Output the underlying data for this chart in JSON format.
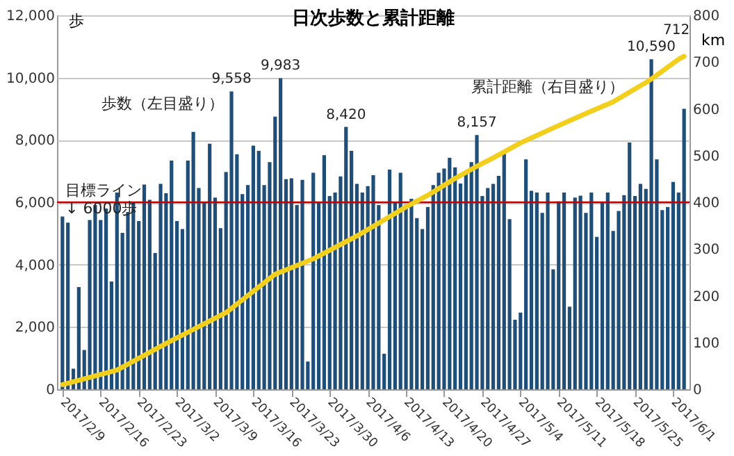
{
  "chart_data": {
    "type": "bar",
    "title": "日次歩数と累計距離",
    "ylabel": "歩",
    "y2label": "km",
    "x": [
      "2017-02-09",
      "2017-02-10",
      "2017-02-11",
      "2017-02-12",
      "2017-02-13",
      "2017-02-14",
      "2017-02-15",
      "2017-02-16",
      "2017-02-17",
      "2017-02-18",
      "2017-02-19",
      "2017-02-20",
      "2017-02-21",
      "2017-02-22",
      "2017-02-23",
      "2017-02-24",
      "2017-02-25",
      "2017-02-26",
      "2017-02-27",
      "2017-02-28",
      "2017-03-01",
      "2017-03-02",
      "2017-03-03",
      "2017-03-04",
      "2017-03-05",
      "2017-03-06",
      "2017-03-07",
      "2017-03-08",
      "2017-03-09",
      "2017-03-10",
      "2017-03-11",
      "2017-03-12",
      "2017-03-13",
      "2017-03-14",
      "2017-03-15",
      "2017-03-16",
      "2017-03-17",
      "2017-03-18",
      "2017-03-19",
      "2017-03-20",
      "2017-03-21",
      "2017-03-22",
      "2017-03-23",
      "2017-03-24",
      "2017-03-25",
      "2017-03-26",
      "2017-03-27",
      "2017-03-28",
      "2017-03-29",
      "2017-03-30",
      "2017-03-31",
      "2017-04-01",
      "2017-04-02",
      "2017-04-03",
      "2017-04-04",
      "2017-04-05",
      "2017-04-06",
      "2017-04-07",
      "2017-04-08",
      "2017-04-09",
      "2017-04-10",
      "2017-04-11",
      "2017-04-12",
      "2017-04-13",
      "2017-04-14",
      "2017-04-15",
      "2017-04-16",
      "2017-04-17",
      "2017-04-18",
      "2017-04-19",
      "2017-04-20",
      "2017-04-21",
      "2017-04-22",
      "2017-04-23",
      "2017-04-24",
      "2017-04-25",
      "2017-04-26",
      "2017-04-27",
      "2017-04-28",
      "2017-04-29",
      "2017-04-30",
      "2017-05-01",
      "2017-05-02",
      "2017-05-03",
      "2017-05-04",
      "2017-05-05",
      "2017-05-06",
      "2017-05-07",
      "2017-05-08",
      "2017-05-09",
      "2017-05-10",
      "2017-05-11",
      "2017-05-12",
      "2017-05-13",
      "2017-05-14",
      "2017-05-15",
      "2017-05-16",
      "2017-05-17",
      "2017-05-18",
      "2017-05-19",
      "2017-05-20",
      "2017-05-21",
      "2017-05-22",
      "2017-05-23",
      "2017-05-24",
      "2017-05-25",
      "2017-05-26",
      "2017-05-27",
      "2017-05-28",
      "2017-05-29",
      "2017-05-30",
      "2017-05-31",
      "2017-06-01",
      "2017-06-02",
      "2017-06-03"
    ],
    "xlim": [
      "2017-02-08",
      "2017-06-04"
    ],
    "xticks": [
      {
        "value": "2017-02-09",
        "label": "2017/2/9"
      },
      {
        "value": "2017-02-16",
        "label": "2017/2/16"
      },
      {
        "value": "2017-02-23",
        "label": "2017/2/23"
      },
      {
        "value": "2017-03-02",
        "label": "2017/3/2"
      },
      {
        "value": "2017-03-09",
        "label": "2017/3/9"
      },
      {
        "value": "2017-03-16",
        "label": "2017/3/16"
      },
      {
        "value": "2017-03-23",
        "label": "2017/3/23"
      },
      {
        "value": "2017-03-30",
        "label": "2017/3/30"
      },
      {
        "value": "2017-04-06",
        "label": "2017/4/6"
      },
      {
        "value": "2017-04-13",
        "label": "2017/4/13"
      },
      {
        "value": "2017-04-20",
        "label": "2017/4/20"
      },
      {
        "value": "2017-04-27",
        "label": "2017/4/27"
      },
      {
        "value": "2017-05-04",
        "label": "2017/5/4"
      },
      {
        "value": "2017-05-11",
        "label": "2017/5/11"
      },
      {
        "value": "2017-05-18",
        "label": "2017/5/18"
      },
      {
        "value": "2017-05-25",
        "label": "2017/5/25"
      },
      {
        "value": "2017-06-01",
        "label": "2017/6/1"
      }
    ],
    "ylim": [
      0,
      12000
    ],
    "yticks": [
      0,
      {
        "value": 2000,
        "label": "2,000"
      },
      {
        "value": 4000,
        "label": "4,000"
      },
      {
        "value": 6000,
        "label": "6,000"
      },
      {
        "value": 8000,
        "label": "8,000"
      },
      {
        "value": 10000,
        "label": "10,000"
      },
      {
        "value": 12000,
        "label": "12,000"
      }
    ],
    "y2lim": [
      0,
      800
    ],
    "y2ticks": [
      0,
      100,
      200,
      300,
      400,
      500,
      600,
      700,
      800
    ],
    "grid": "y",
    "ref_lines": [
      {
        "axis": "y",
        "value": 6000,
        "label": "目標ライン\n↓ 6000歩",
        "color": "#c00000"
      }
    ],
    "series": [
      {
        "name": "歩数（左目盛り）",
        "color": "#1f4e79",
        "values": [
          5540,
          5350,
          660,
          3280,
          1260,
          5430,
          5910,
          5430,
          5800,
          3460,
          6310,
          5020,
          5690,
          6000,
          5400,
          6570,
          6080,
          4370,
          6590,
          6290,
          7340,
          5400,
          5140,
          7340,
          8260,
          6460,
          6000,
          7880,
          6150,
          5170,
          6970,
          9558,
          7540,
          6260,
          6550,
          7820,
          7650,
          6550,
          7290,
          8750,
          9983,
          6740,
          6770,
          5910,
          6720,
          890,
          6950,
          6000,
          7510,
          6200,
          6310,
          6830,
          8420,
          7650,
          6590,
          6310,
          6520,
          6870,
          5910,
          1140,
          7050,
          5990,
          6950,
          5920,
          6110,
          5490,
          5140,
          5850,
          6550,
          6950,
          7080,
          7430,
          7120,
          6600,
          6950,
          7290,
          8157,
          6200,
          6460,
          6590,
          6850,
          7570,
          5460,
          2230,
          2460,
          7380,
          6370,
          6310,
          5660,
          6310,
          3850,
          6030,
          6310,
          2650,
          6150,
          6210,
          5660,
          6310,
          4890,
          5990,
          6310,
          5080,
          5720,
          6230,
          7920,
          6200,
          6590,
          6430,
          10590,
          7380,
          5750,
          5850,
          6650,
          6310,
          9000
        ],
        "value_labels": [
          null,
          null,
          null,
          null,
          null,
          null,
          null,
          null,
          null,
          null,
          null,
          null,
          null,
          null,
          null,
          null,
          null,
          null,
          null,
          null,
          null,
          null,
          null,
          null,
          null,
          null,
          null,
          null,
          null,
          null,
          null,
          "9,558",
          null,
          null,
          null,
          null,
          null,
          null,
          null,
          null,
          "9,983",
          null,
          null,
          null,
          null,
          null,
          null,
          null,
          null,
          null,
          null,
          null,
          "8,420",
          null,
          null,
          null,
          null,
          null,
          null,
          null,
          null,
          null,
          null,
          null,
          null,
          null,
          null,
          null,
          null,
          null,
          null,
          null,
          null,
          null,
          null,
          null,
          "8,157",
          null,
          null,
          null,
          null,
          null,
          null,
          null,
          null,
          null,
          null,
          null,
          null,
          null,
          null,
          null,
          null,
          null,
          null,
          null,
          null,
          null,
          null,
          null,
          null,
          null,
          null,
          null,
          null,
          null,
          null,
          null,
          "10,590",
          null,
          null,
          null,
          null,
          null,
          null
        ]
      },
      {
        "name": "累計距離（右目盛り）",
        "type": "line",
        "axis": "y2",
        "color": "#f2cf1d",
        "x": [
          "2017-02-09",
          "2017-02-19",
          "2017-02-28",
          "2017-03-11",
          "2017-03-20",
          "2017-03-27",
          "2017-04-04",
          "2017-04-13",
          "2017-04-17",
          "2017-04-22",
          "2017-04-26",
          "2017-04-29",
          "2017-05-04",
          "2017-05-10",
          "2017-05-16",
          "2017-05-21",
          "2017-05-27",
          "2017-05-29",
          "2017-06-02",
          "2017-06-03"
        ],
        "values": [
          10,
          41,
          98,
          164,
          246,
          279,
          328,
          390,
          415,
          451,
          477,
          495,
          527,
          559,
          590,
          615,
          656,
          672,
          706,
          712
        ],
        "value_labels": [
          null,
          null,
          null,
          null,
          null,
          null,
          null,
          null,
          null,
          null,
          null,
          null,
          null,
          null,
          null,
          null,
          null,
          null,
          null,
          "712"
        ]
      }
    ]
  }
}
